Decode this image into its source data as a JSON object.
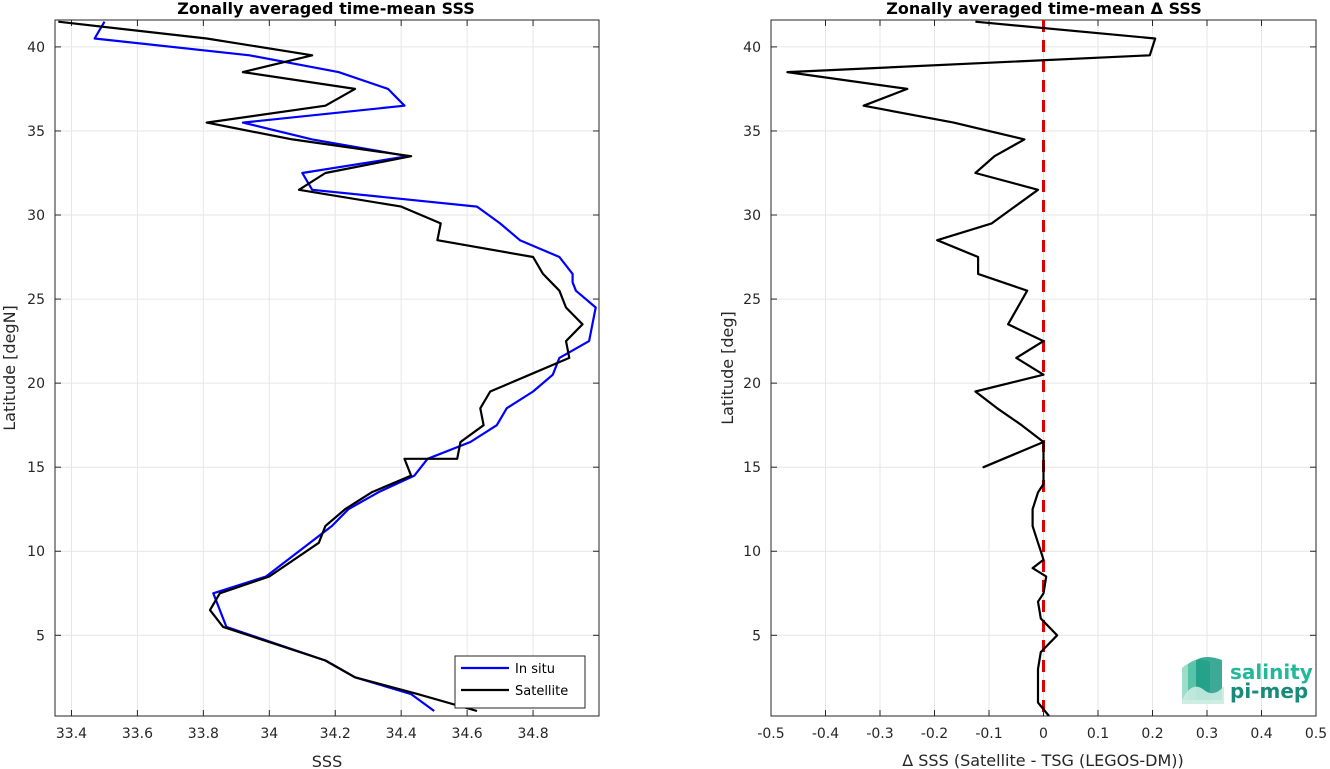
{
  "chart_data": [
    {
      "type": "line",
      "title": "Zonally averaged time-mean SSS",
      "xlabel": "SSS",
      "ylabel": "Latitude [degN]",
      "xlim": [
        33.35,
        35.0
      ],
      "ylim": [
        0.2,
        41.6
      ],
      "xticks": [
        33.4,
        33.6,
        33.8,
        34.0,
        34.2,
        34.4,
        34.6,
        34.8
      ],
      "xtick_labels": [
        "33.4",
        "33.6",
        "33.8",
        "34",
        "34.2",
        "34.4",
        "34.6",
        "34.8"
      ],
      "yticks": [
        5,
        10,
        15,
        20,
        25,
        30,
        35,
        40
      ],
      "ytick_labels": [
        "5",
        "10",
        "15",
        "20",
        "25",
        "30",
        "35",
        "40"
      ],
      "grid": true,
      "legend_position": "bottom-right",
      "series": [
        {
          "name": "In situ",
          "color": "#0000ff",
          "x": [
            34.5,
            34.43,
            34.26,
            34.17,
            33.87,
            33.83,
            33.99,
            34.19,
            34.24,
            34.33,
            34.44,
            34.48,
            34.61,
            34.69,
            34.72,
            34.8,
            34.86,
            34.88,
            34.97,
            34.99,
            34.93,
            34.92,
            34.92,
            34.88,
            34.76,
            34.7,
            34.63,
            34.13,
            34.1,
            34.42,
            34.13,
            33.92,
            34.41,
            34.36,
            34.21,
            33.94,
            33.47,
            33.5
          ],
          "y": [
            0.5,
            1.5,
            2.5,
            3.5,
            5.5,
            7.5,
            8.5,
            11.5,
            12.5,
            13.5,
            14.5,
            15.5,
            16.5,
            17.5,
            18.5,
            19.5,
            20.5,
            21.5,
            22.5,
            24.5,
            25.5,
            26.0,
            26.5,
            27.5,
            28.5,
            29.5,
            30.5,
            31.5,
            32.5,
            33.5,
            34.5,
            35.5,
            36.5,
            37.5,
            38.5,
            39.5,
            40.5,
            41.5
          ]
        },
        {
          "name": "Satellite",
          "color": "#000000",
          "x": [
            34.63,
            34.45,
            34.26,
            34.17,
            33.86,
            33.82,
            33.85,
            34.0,
            34.15,
            34.17,
            34.23,
            34.31,
            34.43,
            34.41,
            34.57,
            34.58,
            34.65,
            34.64,
            34.67,
            34.79,
            34.91,
            34.9,
            34.95,
            34.9,
            34.88,
            34.83,
            34.8,
            34.51,
            34.52,
            34.4,
            34.09,
            34.17,
            34.43,
            34.07,
            33.81,
            34.17,
            34.26,
            33.92,
            34.13,
            33.81,
            33.36
          ],
          "y": [
            0.5,
            1.5,
            2.5,
            3.5,
            5.5,
            6.5,
            7.5,
            8.5,
            10.5,
            11.5,
            12.5,
            13.5,
            14.5,
            15.5,
            15.5,
            16.5,
            17.5,
            18.5,
            19.5,
            20.5,
            21.5,
            22.5,
            23.5,
            24.5,
            25.5,
            26.5,
            27.5,
            28.5,
            29.5,
            30.5,
            31.5,
            32.5,
            33.5,
            34.5,
            35.5,
            36.5,
            37.5,
            38.5,
            39.5,
            40.5,
            41.5
          ]
        }
      ]
    },
    {
      "type": "line",
      "title": "Zonally averaged time-mean Δ SSS",
      "xlabel": "Δ SSS (Satellite - TSG (LEGOS-DM))",
      "ylabel": "Latitude [deg]",
      "xlim": [
        -0.5,
        0.5
      ],
      "ylim": [
        0.2,
        41.6
      ],
      "xticks": [
        -0.5,
        -0.4,
        -0.3,
        -0.2,
        -0.1,
        0,
        0.1,
        0.2,
        0.3,
        0.4,
        0.5
      ],
      "xtick_labels": [
        "-0.5",
        "-0.4",
        "-0.3",
        "-0.2",
        "-0.1",
        "0",
        "0.1",
        "0.2",
        "0.3",
        "0.4",
        "0.5"
      ],
      "yticks": [
        5,
        10,
        15,
        20,
        25,
        30,
        35,
        40
      ],
      "ytick_labels": [
        "5",
        "10",
        "15",
        "20",
        "25",
        "30",
        "35",
        "40"
      ],
      "grid": true,
      "reference_line": {
        "x": 0,
        "color": "#dd0000",
        "style": "dashed"
      },
      "series": [
        {
          "color": "#000000",
          "x": [
            0.01,
            -0.01,
            -0.01,
            -0.01,
            -0.005,
            0.025,
            -0.005,
            -0.01,
            0.0,
            0.005,
            -0.02,
            0.0,
            -0.005,
            -0.01,
            -0.015,
            -0.02,
            -0.02,
            -0.01,
            0.0,
            0.0,
            0.0,
            -0.11,
            0.0,
            -0.04,
            -0.085,
            -0.125,
            0.0,
            -0.05,
            0.0,
            -0.065,
            -0.03,
            -0.12,
            -0.12,
            -0.195,
            -0.095,
            -0.01,
            -0.125,
            -0.09,
            -0.035,
            -0.165,
            -0.33,
            -0.25,
            -0.47,
            0.195,
            0.205,
            -0.125
          ],
          "y": [
            0.2,
            1.0,
            2.0,
            3.0,
            4.0,
            5.0,
            6.0,
            7.0,
            7.5,
            8.5,
            9.0,
            9.5,
            10.0,
            10.5,
            11.0,
            11.5,
            12.5,
            13.5,
            14.0,
            14.5,
            16.5,
            15.0,
            16.5,
            17.5,
            18.5,
            19.5,
            20.5,
            21.5,
            22.5,
            23.5,
            25.5,
            26.5,
            27.5,
            28.5,
            29.5,
            31.5,
            32.5,
            33.5,
            34.5,
            35.5,
            36.5,
            37.5,
            38.5,
            39.5,
            40.5,
            41.5
          ]
        }
      ]
    }
  ],
  "legend": {
    "entries": [
      "In situ",
      "Satellite"
    ]
  },
  "logo": {
    "line1": "salinity",
    "line2": "pi-mep",
    "color_dark": "#1a8a7a",
    "color_light": "#22c7a5"
  }
}
